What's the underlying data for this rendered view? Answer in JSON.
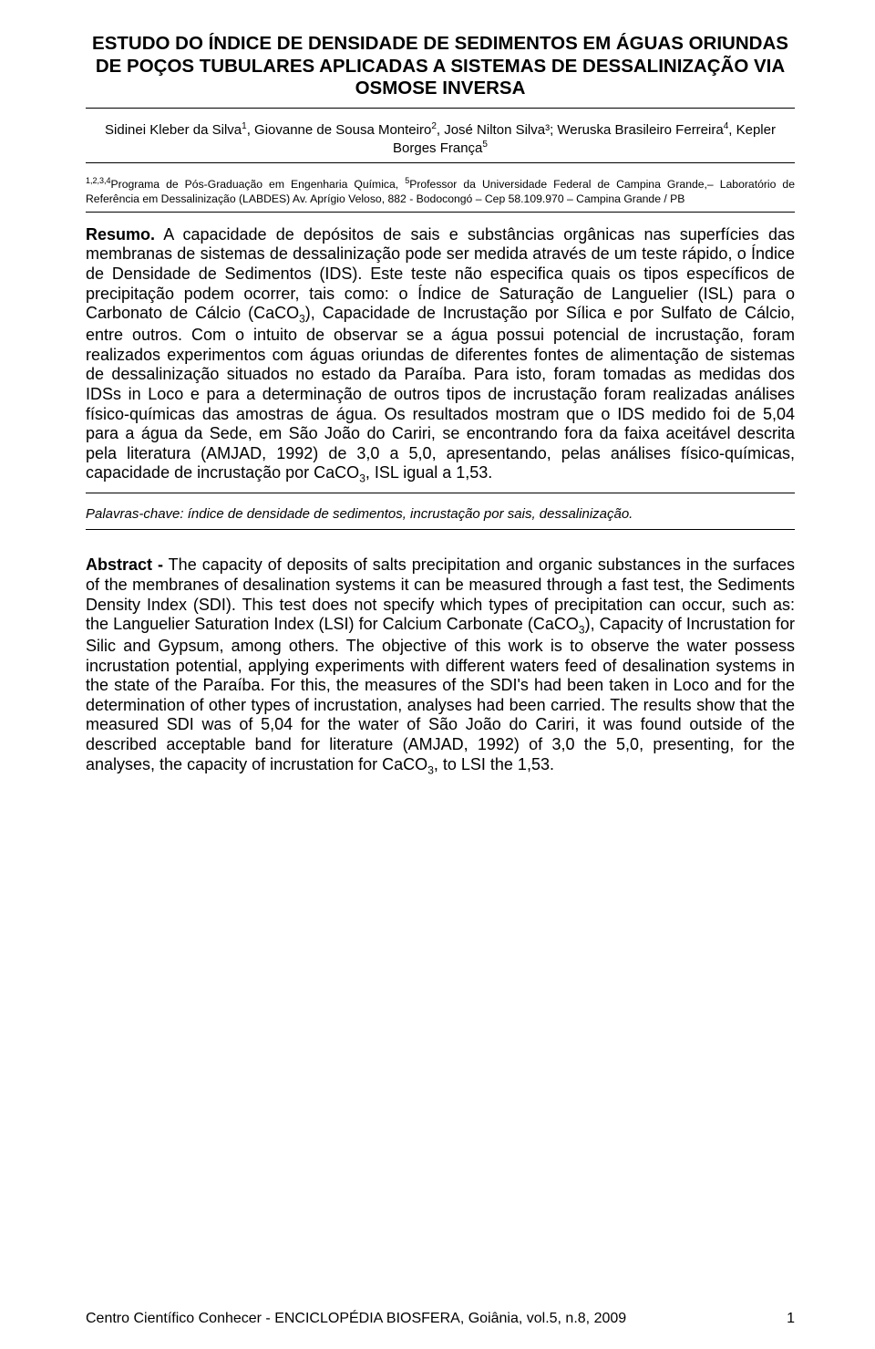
{
  "title": "ESTUDO DO ÍNDICE DE DENSIDADE DE SEDIMENTOS EM ÁGUAS ORIUNDAS DE POÇOS TUBULARES APLICADAS A SISTEMAS DE DESSALINIZAÇÃO VIA OSMOSE INVERSA",
  "authors_html": "Sidinei Kleber da Silva<sup>1</sup>, Giovanne de Sousa Monteiro<sup>2</sup>, José Nilton Silva³; Weruska Brasileiro Ferreira<sup>4</sup>, Kepler Borges França<sup>5</sup>",
  "affiliations_html": "<sup>1,2,3,4</sup>Programa de Pós-Graduação em Engenharia Química, <sup>5</sup>Professor da Universidade Federal de Campina Grande,– Laboratório de Referência em Dessalinização (LABDES) Av. Aprígio Veloso, 882 - Bodocongó – Cep 58.109.970 – Campina Grande / PB",
  "resumo_lead": "Resumo.",
  "resumo_body_html": " A capacidade de depósitos de sais e substâncias orgânicas nas superfícies das membranas de sistemas de dessalinização pode ser medida através de um teste rápido, o Índice de Densidade de Sedimentos (IDS). Este teste não especifica quais os tipos específicos de precipitação podem ocorrer, tais como: o Índice de Saturação de Languelier (ISL) para o Carbonato de Cálcio (CaCO<sub>3</sub>), Capacidade de Incrustação por Sílica e por Sulfato de Cálcio, entre outros. Com o intuito de observar se a água possui potencial de incrustação, foram realizados experimentos com águas oriundas de diferentes fontes de alimentação de sistemas de dessalinização situados no estado da Paraíba. Para isto, foram tomadas as medidas dos IDSs in Loco e para a determinação de outros tipos de incrustação foram realizadas análises físico-químicas das amostras de água. Os resultados mostram que o IDS medido foi de 5,04 para a água da Sede, em São João do Cariri, se encontrando fora da faixa aceitável descrita pela literatura (AMJAD, 1992) de 3,0 a 5,0, apresentando, pelas análises físico-químicas, capacidade de incrustação por CaCO<sub>3</sub>, ISL igual a 1,53.",
  "keywords": "Palavras-chave: índice de densidade de sedimentos, incrustação por sais, dessalinização.",
  "abstract_lead": "Abstract -",
  "abstract_body_html": " The capacity of deposits of salts precipitation and organic substances in the surfaces of the membranes of desalination systems it can be measured through a fast test, the Sediments Density Index (SDI). This test does not specify which types of precipitation can occur, such as: the Languelier Saturation Index (LSI) for Calcium Carbonate (CaCO<sub>3</sub>), Capacity of Incrustation for Silic and Gypsum, among others. The objective of this work is to observe the water possess incrustation potential, applying experiments with different waters feed of desalination systems in the state of the Paraíba. For this, the measures of the SDI's had been taken in Loco and for the determination of other types of incrustation, analyses had been carried. The results show that the measured SDI was of 5,04 for the water of São João do Cariri, it was found outside of the described acceptable band for literature (AMJAD, 1992) of 3,0 the 5,0, presenting, for the analyses, the capacity of incrustation for CaCO<sub>3</sub>, to LSI the 1,53.",
  "footer_text": "Centro Científico Conhecer - ENCICLOPÉDIA BIOSFERA, Goiânia,  vol.5, n.8,  2009",
  "footer_page": "1"
}
